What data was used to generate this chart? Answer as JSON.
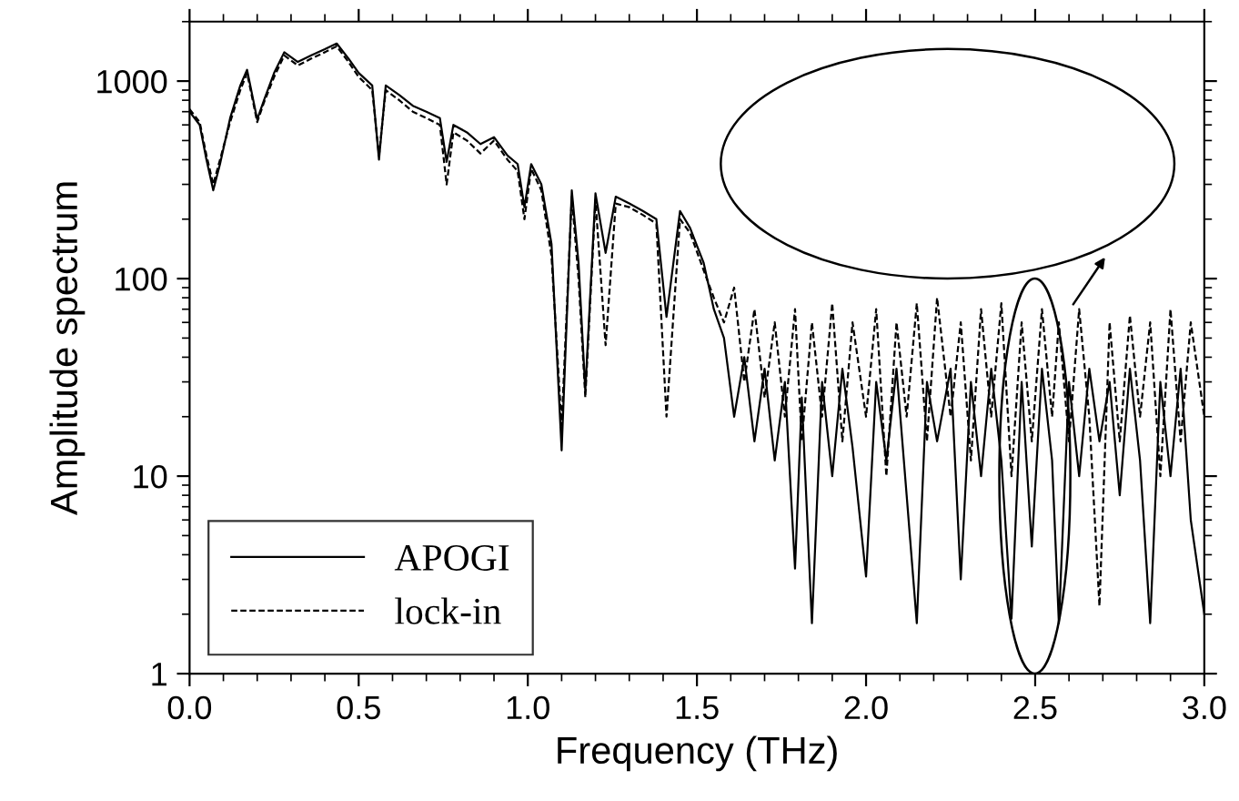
{
  "chart_data": {
    "type": "line",
    "xlabel": "Frequency (THz)",
    "ylabel": "Amplitude spectrum",
    "x": [
      0,
      0.03,
      0.05,
      0.07,
      0.09,
      0.12,
      0.15,
      0.17,
      0.2,
      0.22,
      0.25,
      0.28,
      0.32,
      0.36,
      0.4,
      0.435,
      0.47,
      0.5,
      0.54,
      0.56,
      0.58,
      0.62,
      0.66,
      0.7,
      0.74,
      0.76,
      0.78,
      0.82,
      0.86,
      0.9,
      0.94,
      0.97,
      0.99,
      1.01,
      1.04,
      1.07,
      1.1,
      1.13,
      1.15,
      1.17,
      1.2,
      1.23,
      1.26,
      1.3,
      1.34,
      1.38,
      1.41,
      1.45,
      1.48,
      1.52,
      1.55,
      1.58,
      1.61,
      1.64,
      1.67,
      1.7,
      1.73,
      1.76,
      1.79,
      1.81,
      1.84,
      1.87,
      1.9,
      1.93,
      1.96,
      2.0,
      2.03,
      2.06,
      2.09,
      2.12,
      2.15,
      2.18,
      2.21,
      2.25,
      2.28,
      2.31,
      2.34,
      2.37,
      2.4,
      2.43,
      2.46,
      2.49,
      2.52,
      2.55,
      2.57,
      2.6,
      2.63,
      2.66,
      2.69,
      2.72,
      2.75,
      2.78,
      2.81,
      2.84,
      2.87,
      2.9,
      2.93,
      2.96,
      3.0
    ],
    "series": [
      {
        "name": "APOGI",
        "color": "#000000",
        "line_style": "solid",
        "values": [
          700,
          600,
          400,
          280,
          380,
          650,
          950,
          1140,
          640,
          800,
          1100,
          1400,
          1250,
          1350,
          1450,
          1550,
          1300,
          1100,
          950,
          400,
          950,
          850,
          750,
          700,
          650,
          390,
          600,
          550,
          480,
          520,
          420,
          380,
          230,
          380,
          300,
          150,
          13.5,
          280,
          120,
          27,
          270,
          135,
          260,
          240,
          220,
          200,
          64,
          220,
          180,
          120,
          70,
          50,
          20,
          40,
          15,
          35,
          12,
          30,
          3.4,
          25,
          1.8,
          30,
          10,
          35,
          14,
          3.1,
          30,
          12,
          35,
          8,
          1.8,
          30,
          15,
          35,
          3.0,
          30,
          10,
          35,
          12,
          1.9,
          30,
          4.4,
          35,
          12,
          1.8,
          30,
          10,
          35,
          15,
          30,
          8,
          35,
          12,
          1.8,
          30,
          10,
          35,
          6,
          2.0
        ]
      },
      {
        "name": "lock-in",
        "color": "#000000",
        "line_style": "dashed",
        "values": [
          720,
          620,
          420,
          300,
          400,
          620,
          900,
          1100,
          620,
          780,
          1050,
          1350,
          1200,
          1300,
          1400,
          1500,
          1250,
          1050,
          900,
          420,
          900,
          800,
          700,
          650,
          600,
          300,
          550,
          500,
          430,
          500,
          400,
          350,
          200,
          360,
          280,
          130,
          18,
          260,
          100,
          25,
          250,
          46,
          240,
          230,
          210,
          190,
          20,
          200,
          170,
          110,
          80,
          60,
          90,
          30,
          70,
          25,
          60,
          20,
          70,
          15,
          60,
          20,
          75,
          15,
          60,
          20,
          70,
          10,
          60,
          20,
          75,
          15,
          80,
          20,
          60,
          12,
          70,
          20,
          75,
          10,
          60,
          15,
          70,
          20,
          60,
          15,
          70,
          20,
          2.2,
          60,
          15,
          65,
          20,
          60,
          10,
          70,
          15,
          60,
          20
        ]
      }
    ],
    "log": "y",
    "xlim": [
      0,
      3
    ],
    "ylim": [
      1,
      2000
    ],
    "xticks": [
      {
        "value": 0,
        "label": "0.0"
      },
      {
        "value": 0.5,
        "label": "0.5"
      },
      {
        "value": 1,
        "label": "1.0"
      },
      {
        "value": 1.5,
        "label": "1.5"
      },
      {
        "value": 2,
        "label": "2.0"
      },
      {
        "value": 2.5,
        "label": "2.5"
      },
      {
        "value": 3,
        "label": "3.0"
      }
    ],
    "yticks": [
      1,
      10,
      100,
      1000
    ],
    "grid": false,
    "legend": "bottom left",
    "marker": "none"
  }
}
